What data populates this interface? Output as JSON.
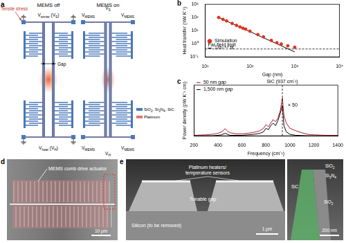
{
  "panels": {
    "a": {
      "label": "a",
      "mems_off": {
        "title": "MEMS off",
        "top": [
          "V",
          "sense",
          " (V",
          "S",
          ")"
        ],
        "bottom": [
          "V",
          "heat",
          " (V",
          "H",
          ")"
        ],
        "stress": "Tensile stress",
        "gap": "Gap"
      },
      "mems_on": {
        "title": "MEMS on",
        "corners": [
          "V",
          "MEMS"
        ],
        "top": [
          "V",
          "S"
        ],
        "bottom": [
          "V",
          "H"
        ]
      },
      "legend": [
        {
          "text": [
            "SiO",
            "2",
            ", Si",
            "3",
            "N",
            "4",
            ", SiC"
          ],
          "color": "#4a78b8"
        },
        {
          "text": [
            "Platinum"
          ],
          "color": "#e0776c"
        }
      ]
    },
    "d": {
      "label": "d",
      "annotation": "MEMS comb drive actuator",
      "scale_bar": "10 μm"
    },
    "e": {
      "label": "e",
      "heaters": [
        "Platinum heaters/",
        "temperature sensors"
      ],
      "gap": "Tunable gap",
      "substrate": "Silicon (to be removed)",
      "scale_bar": "1 μm",
      "inset": {
        "layers": [
          [
            "SiO",
            "2"
          ],
          [
            "Si",
            "3",
            "N",
            "4"
          ],
          [
            "SiC"
          ],
          [
            "SiO",
            "2"
          ]
        ],
        "scale_bar": "200 nm"
      }
    }
  },
  "chart_data": [
    {
      "panel": "b",
      "type": "scatter",
      "x_label": "Gap (nm)",
      "y_label": "Heat transfer (nW K⁻¹)",
      "log": true,
      "xlim": [
        10,
        10000
      ],
      "ylim": [
        0.1,
        1000
      ],
      "xticks": [
        {
          "value": 10,
          "label": "10¹"
        },
        {
          "value": 100,
          "label": "10²"
        },
        {
          "value": 1000,
          "label": "10³"
        },
        {
          "value": 10000,
          "label": "10⁴"
        }
      ],
      "yticks": [
        {
          "value": 0.1,
          "label": "10⁻¹"
        },
        {
          "value": 1,
          "label": "10⁰"
        },
        {
          "value": 10,
          "label": "10¹"
        },
        {
          "value": 100,
          "label": "10²"
        },
        {
          "value": 1000,
          "label": "10³"
        }
      ],
      "grid": false,
      "legend": "upper right",
      "series": [
        {
          "name": "Simulation",
          "color": "#e0301e",
          "marker": "circle",
          "x": [
            20,
            25,
            30,
            40,
            50,
            60,
            70,
            80,
            100,
            150,
            200,
            300,
            400,
            500,
            700,
            1000
          ],
          "values": [
            100,
            72,
            55,
            35,
            25,
            19,
            15,
            13,
            9,
            5,
            3.3,
            1.8,
            1.2,
            0.95,
            0.7,
            0.55
          ]
        },
        {
          "name": "1/d¹·⁵⁴ fit",
          "color": "#000000",
          "line_style": "solid",
          "x": [
            20,
            1000
          ],
          "values": [
            100,
            0.24
          ]
        }
      ],
      "annotations": [
        {
          "text": "Far-field limit",
          "y": 0.4,
          "line_style": "dashed"
        }
      ]
    },
    {
      "panel": "c",
      "type": "line",
      "x_label": "Frequency (cm⁻¹)",
      "y_label": "Power density (pW K⁻¹ cm)",
      "xlim": [
        200,
        1400
      ],
      "xticks": [
        200,
        400,
        600,
        800,
        1000,
        1200,
        1400
      ],
      "ylim": [
        0,
        10
      ],
      "tick_labels": "x",
      "grid": false,
      "legend": "upper left",
      "x": [
        200,
        250,
        300,
        350,
        400,
        430,
        460,
        480,
        500,
        550,
        600,
        650,
        700,
        750,
        780,
        800,
        820,
        840,
        860,
        880,
        900,
        920,
        937,
        950,
        970,
        1000,
        1050,
        1100,
        1150,
        1200,
        1250,
        1300,
        1350,
        1400
      ],
      "series": [
        {
          "name": "50 nm gap",
          "color": "#b2182b",
          "line_style": "solid",
          "values": [
            0.1,
            0.15,
            0.2,
            0.3,
            0.5,
            0.8,
            1.4,
            0.9,
            0.6,
            0.4,
            0.4,
            0.5,
            0.7,
            1.0,
            1.5,
            2.2,
            1.8,
            2.5,
            3.2,
            2.8,
            3.5,
            5.0,
            7.5,
            4.0,
            2.5,
            1.5,
            1.0,
            0.6,
            0.3,
            0.2,
            0.15,
            0.1,
            0.1,
            0.1
          ]
        },
        {
          "name": "1,500 nm gap",
          "color": "#000000",
          "line_style": "solid",
          "values": [
            0,
            0,
            0,
            0,
            0.1,
            0.2,
            0.5,
            0.3,
            0.1,
            0.1,
            0.1,
            0.2,
            0.3,
            0.5,
            0.8,
            1.5,
            1.2,
            2.0,
            2.5,
            2.0,
            3.0,
            4.5,
            6.0,
            2.0,
            0.8,
            0.3,
            0.1,
            0.05,
            0,
            0,
            0,
            0,
            0,
            0
          ]
        }
      ],
      "annotations": [
        {
          "text": "SiC (937 cm⁻¹)",
          "x": 937,
          "line_style": "dashed"
        },
        {
          "text": "× 50"
        }
      ]
    }
  ]
}
